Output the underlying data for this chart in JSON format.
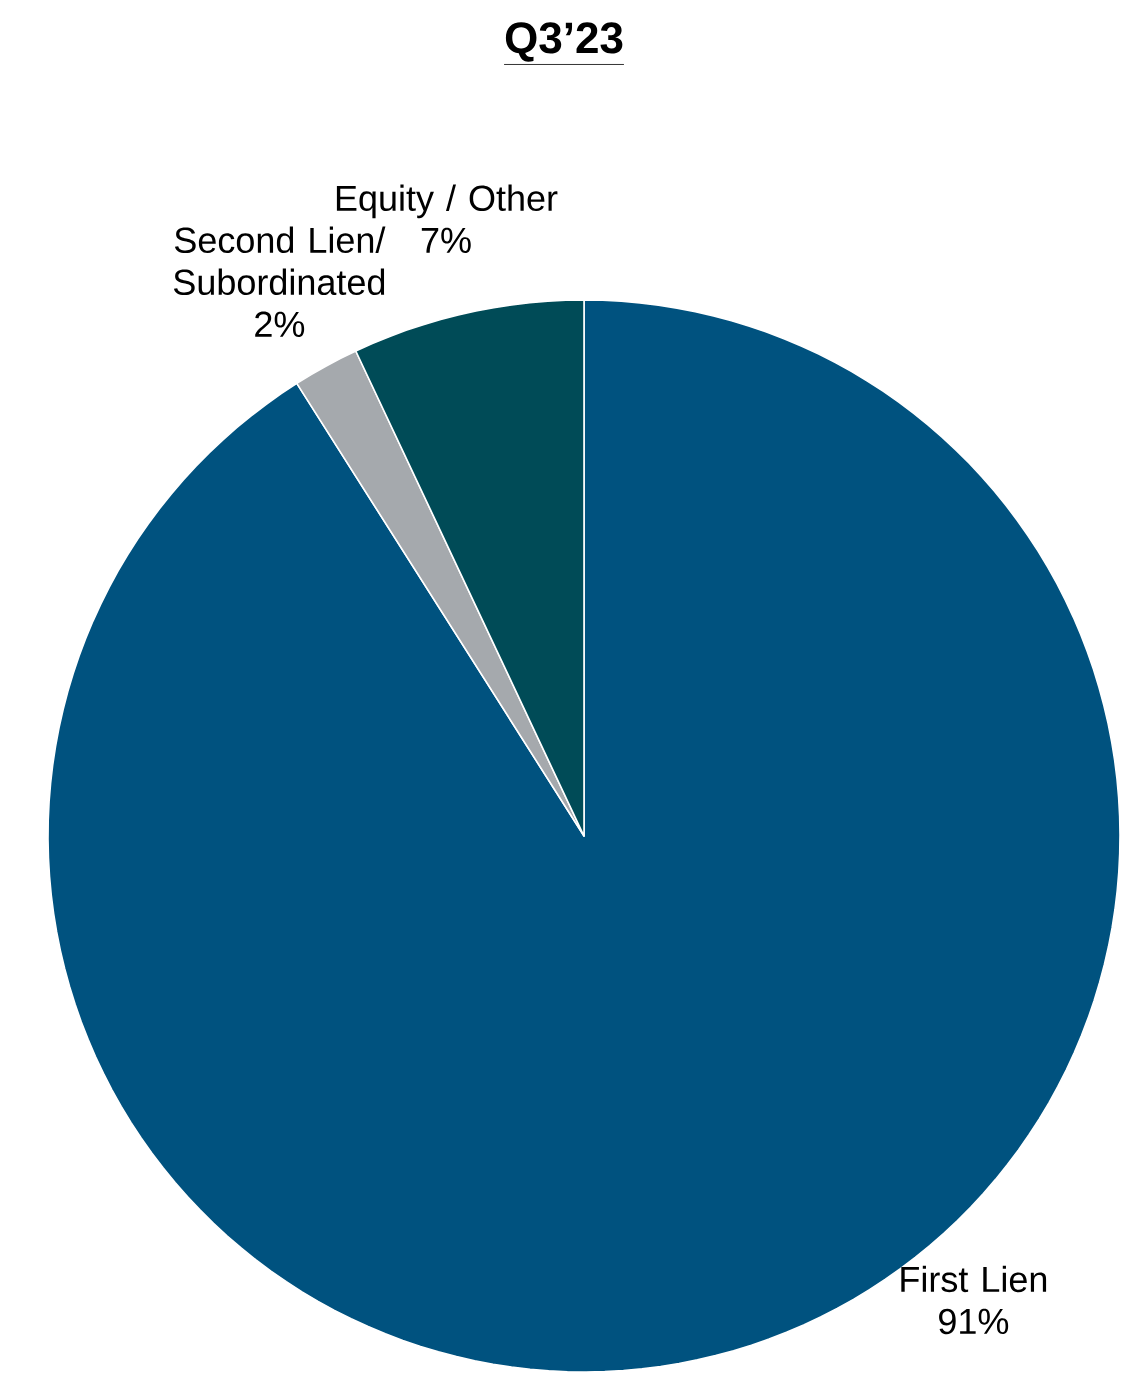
{
  "chart_data": {
    "type": "pie",
    "title": "Q3’23",
    "categories": [
      "First Lien",
      "Second Lien/ Subordinated",
      "Equity / Other"
    ],
    "values": [
      91,
      2,
      7
    ],
    "value_labels": [
      "91%",
      "2%",
      "7%"
    ],
    "colors": [
      "#00527f",
      "#a5a9ad",
      "#004b57"
    ]
  }
}
